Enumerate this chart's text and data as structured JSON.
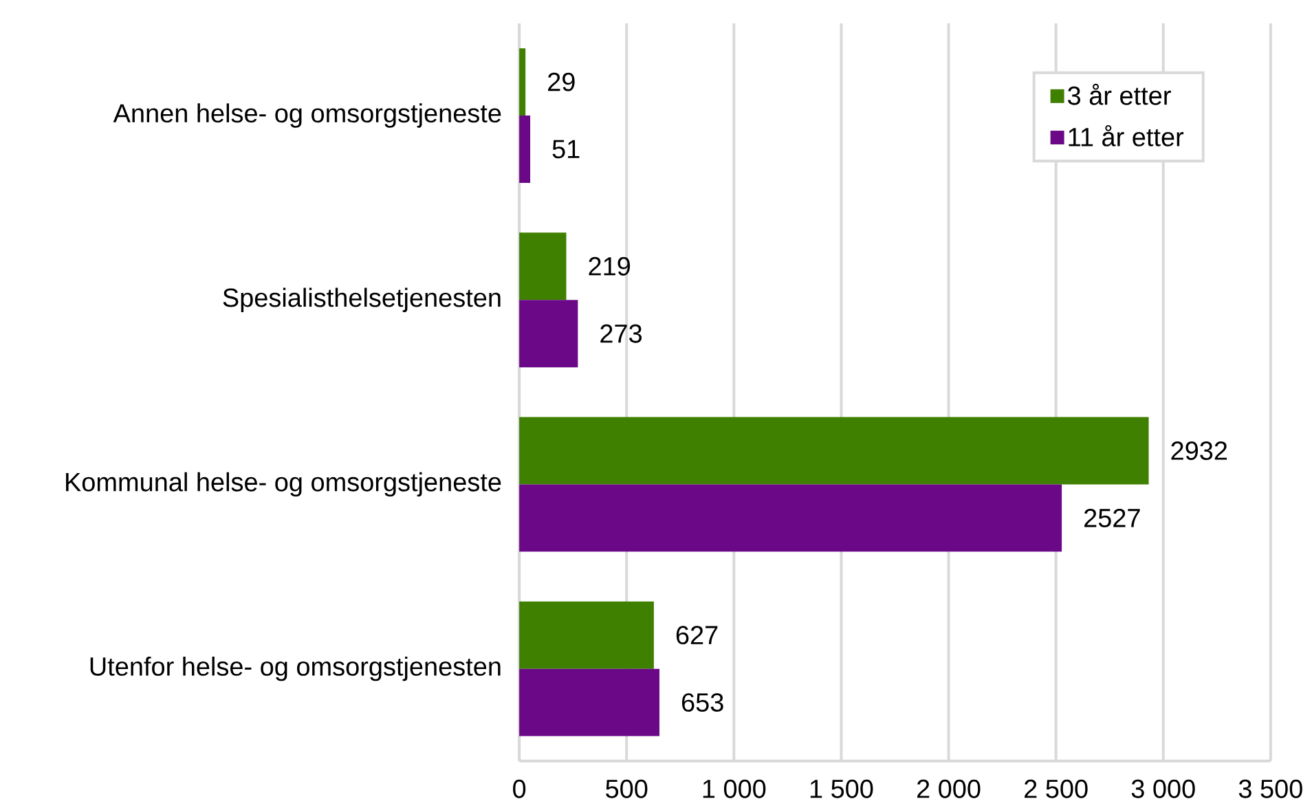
{
  "chart_data": {
    "type": "bar",
    "orientation": "horizontal",
    "categories": [
      "Annen helse- og omsorgstjeneste",
      "Spesialisthelsetjenesten",
      "Kommunal helse- og omsorgstjeneste",
      "Utenfor helse- og omsorgstjenesten"
    ],
    "series": [
      {
        "name": "3 år etter",
        "color": "#408000",
        "values": [
          29,
          219,
          2932,
          627
        ]
      },
      {
        "name": "11 år etter",
        "color": "#6a0888",
        "values": [
          51,
          273,
          2527,
          653
        ]
      }
    ],
    "xlim": [
      0,
      3500
    ],
    "xticks": [
      0,
      500,
      {
        "value": 1000,
        "label": "1 000"
      },
      {
        "value": 1500,
        "label": "1 500"
      },
      {
        "value": 2000,
        "label": "2 000"
      },
      {
        "value": 2500,
        "label": "2 500"
      },
      {
        "value": 3000,
        "label": "3 000"
      },
      {
        "value": 3500,
        "label": "3 500"
      }
    ],
    "grid": "x",
    "legend": "top right",
    "data_labels": true
  }
}
